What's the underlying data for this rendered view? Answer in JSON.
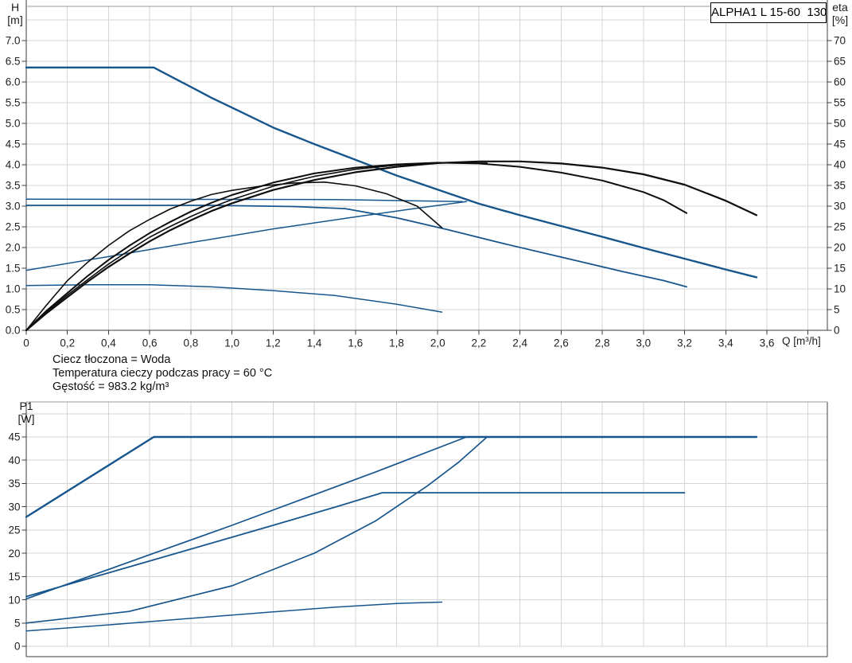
{
  "model_label": "ALPHA1 L 15-60  130",
  "axis_titles": {
    "head_line1": "H",
    "head_line2": "[m]",
    "eta_line1": "eta",
    "eta_line2": "[%]",
    "flow": "Q [m³/h]",
    "power_line1": "P1",
    "power_line2": "[W]"
  },
  "notes": [
    "Ciecz tłoczona = Woda",
    "Temperatura cieczy podczas pracy = 60 °C",
    "Gęstość = 983.2 kg/m³"
  ],
  "colors": {
    "curve_blue": "#17568c",
    "curve_black": "#0e0e0e",
    "grid": "#d6d6d6",
    "axis": "#3c3c3c",
    "tick_text": "#1f1f1f"
  },
  "chart_data": [
    {
      "type": "line",
      "title": "ALPHA1 L 15-60  130",
      "xlabel": "Q [m³/h]",
      "ylabel": "H [m]",
      "y2label": "eta [%]",
      "xlim": [
        0,
        3.89
      ],
      "ylim": [
        0,
        7.83
      ],
      "y2lim": [
        0,
        78.3
      ],
      "grid": true,
      "legend": false,
      "x_ticks": [
        0,
        0.2,
        0.4,
        0.6,
        0.8,
        1.0,
        1.2,
        1.4,
        1.6,
        1.8,
        2.0,
        2.2,
        2.4,
        2.6,
        2.8,
        3.0,
        3.2,
        3.4,
        3.6,
        3.8
      ],
      "x_tick_labels": [
        "0",
        "0,2",
        "0,4",
        "0,6",
        "0,8",
        "1,0",
        "1,2",
        "1,4",
        "1,6",
        "1,8",
        "2,0",
        "2,2",
        "2,4",
        "2,6",
        "2,8",
        "3,0",
        "3,2",
        "3,4",
        "3,6",
        ""
      ],
      "y_ticks": [
        0,
        0.5,
        1.0,
        1.5,
        2.0,
        2.5,
        3.0,
        3.5,
        4.0,
        4.5,
        5.0,
        5.5,
        6.0,
        6.5,
        7.0
      ],
      "y_tick_labels": [
        "0.0",
        "0.5",
        "1.0",
        "1.5",
        "2.0",
        "2.5",
        "3.0",
        "3.5",
        "4.0",
        "4.5",
        "5.0",
        "5.5",
        "6.0",
        "6.5",
        "7.0"
      ],
      "grid_extra_y": [
        7.5
      ],
      "y2_ticks": [
        0,
        5,
        10,
        15,
        20,
        25,
        30,
        35,
        40,
        45,
        50,
        55,
        60,
        65,
        70
      ],
      "y2_tick_labels": [
        "0",
        "5",
        "10",
        "15",
        "20",
        "25",
        "30",
        "35",
        "40",
        "45",
        "50",
        "55",
        "60",
        "65",
        "70"
      ],
      "series": [
        {
          "name": "head-speed-3-max",
          "axis": "y",
          "color": "#17568c",
          "width": 2.4,
          "points": [
            [
              0,
              6.35
            ],
            [
              0.62,
              6.35
            ],
            [
              0.7,
              6.14
            ],
            [
              0.8,
              5.88
            ],
            [
              0.9,
              5.62
            ],
            [
              1.0,
              5.38
            ],
            [
              1.1,
              5.14
            ],
            [
              1.2,
              4.9
            ],
            [
              1.3,
              4.7
            ],
            [
              1.4,
              4.5
            ],
            [
              1.6,
              4.12
            ],
            [
              1.8,
              3.74
            ],
            [
              2.0,
              3.4
            ],
            [
              2.2,
              3.06
            ],
            [
              2.4,
              2.78
            ],
            [
              2.6,
              2.52
            ],
            [
              2.8,
              2.26
            ],
            [
              3.0,
              1.99
            ],
            [
              3.2,
              1.73
            ],
            [
              3.4,
              1.47
            ],
            [
              3.55,
              1.28
            ]
          ]
        },
        {
          "name": "head-speed-2",
          "axis": "y",
          "color": "#17568c",
          "width": 1.8,
          "points": [
            [
              0,
              3.02
            ],
            [
              0.9,
              3.02
            ],
            [
              1.3,
              2.99
            ],
            [
              1.55,
              2.94
            ],
            [
              1.8,
              2.72
            ],
            [
              2.05,
              2.43
            ],
            [
              2.3,
              2.12
            ],
            [
              2.6,
              1.77
            ],
            [
              2.9,
              1.42
            ],
            [
              3.1,
              1.2
            ],
            [
              3.21,
              1.05
            ]
          ]
        },
        {
          "name": "head-const-pressure",
          "axis": "y",
          "color": "#17568c",
          "width": 1.5,
          "points": [
            [
              0,
              3.17
            ],
            [
              1.5,
              3.16
            ],
            [
              2.12,
              3.11
            ]
          ]
        },
        {
          "name": "head-prop-pressure",
          "axis": "y",
          "color": "#17568c",
          "width": 1.5,
          "points": [
            [
              0,
              1.45
            ],
            [
              0.4,
              1.78
            ],
            [
              0.8,
              2.12
            ],
            [
              1.2,
              2.45
            ],
            [
              1.6,
              2.74
            ],
            [
              1.9,
              2.95
            ],
            [
              2.14,
              3.11
            ]
          ]
        },
        {
          "name": "head-speed-1-min",
          "axis": "y",
          "color": "#17568c",
          "width": 1.5,
          "points": [
            [
              0,
              1.08
            ],
            [
              0.3,
              1.1
            ],
            [
              0.6,
              1.1
            ],
            [
              0.9,
              1.05
            ],
            [
              1.2,
              0.96
            ],
            [
              1.5,
              0.84
            ],
            [
              1.8,
              0.63
            ],
            [
              2.02,
              0.44
            ]
          ]
        },
        {
          "name": "eta-speed-1",
          "axis": "y2",
          "color": "#0e0e0e",
          "width": 1.6,
          "points": [
            [
              0,
              0
            ],
            [
              0.1,
              6.2
            ],
            [
              0.2,
              12
            ],
            [
              0.3,
              16.5
            ],
            [
              0.4,
              20.5
            ],
            [
              0.5,
              24
            ],
            [
              0.6,
              26.8
            ],
            [
              0.7,
              29.3
            ],
            [
              0.8,
              31.2
            ],
            [
              0.9,
              32.8
            ],
            [
              1.0,
              33.8
            ],
            [
              1.15,
              34.9
            ],
            [
              1.3,
              35.6
            ],
            [
              1.45,
              35.8
            ],
            [
              1.6,
              34.9
            ],
            [
              1.75,
              33
            ],
            [
              1.9,
              30
            ],
            [
              2.02,
              24.8
            ]
          ]
        },
        {
          "name": "eta-prop-pressure",
          "axis": "y2",
          "color": "#0e0e0e",
          "width": 1.6,
          "points": [
            [
              0,
              0
            ],
            [
              0.1,
              4.5
            ],
            [
              0.2,
              8.5
            ],
            [
              0.3,
              12.3
            ],
            [
              0.4,
              16
            ],
            [
              0.5,
              19.3
            ],
            [
              0.6,
              22.5
            ],
            [
              0.7,
              25.1
            ],
            [
              0.8,
              27.5
            ],
            [
              0.9,
              29.7
            ],
            [
              1.0,
              31.6
            ],
            [
              1.2,
              34.8
            ],
            [
              1.4,
              37.2
            ],
            [
              1.6,
              38.9
            ],
            [
              1.8,
              39.9
            ],
            [
              2.0,
              40.5
            ],
            [
              2.24,
              40.4
            ]
          ]
        },
        {
          "name": "eta-speed-2",
          "axis": "y2",
          "color": "#0e0e0e",
          "width": 2,
          "points": [
            [
              0,
              0
            ],
            [
              0.1,
              4.8
            ],
            [
              0.2,
              9
            ],
            [
              0.3,
              13.2
            ],
            [
              0.4,
              17
            ],
            [
              0.5,
              20.4
            ],
            [
              0.6,
              23.5
            ],
            [
              0.7,
              26.2
            ],
            [
              0.8,
              28.7
            ],
            [
              0.9,
              30.8
            ],
            [
              1.0,
              32.7
            ],
            [
              1.2,
              35.7
            ],
            [
              1.4,
              37.9
            ],
            [
              1.6,
              39.3
            ],
            [
              1.8,
              40.1
            ],
            [
              2.0,
              40.5
            ],
            [
              2.2,
              40.3
            ],
            [
              2.4,
              39.5
            ],
            [
              2.6,
              38.1
            ],
            [
              2.8,
              36.2
            ],
            [
              3.0,
              33.4
            ],
            [
              3.1,
              31.4
            ],
            [
              3.21,
              28.3
            ]
          ]
        },
        {
          "name": "eta-speed-3",
          "axis": "y2",
          "color": "#0e0e0e",
          "width": 2.2,
          "points": [
            [
              0,
              0
            ],
            [
              0.1,
              4.2
            ],
            [
              0.2,
              8
            ],
            [
              0.3,
              11.8
            ],
            [
              0.4,
              15.3
            ],
            [
              0.5,
              18.5
            ],
            [
              0.6,
              21.5
            ],
            [
              0.7,
              24.2
            ],
            [
              0.8,
              26.6
            ],
            [
              0.9,
              28.8
            ],
            [
              1.0,
              30.7
            ],
            [
              1.2,
              33.9
            ],
            [
              1.4,
              36.3
            ],
            [
              1.6,
              38.2
            ],
            [
              1.8,
              39.5
            ],
            [
              2.0,
              40.4
            ],
            [
              2.2,
              40.8
            ],
            [
              2.4,
              40.8
            ],
            [
              2.6,
              40.3
            ],
            [
              2.8,
              39.3
            ],
            [
              3.0,
              37.7
            ],
            [
              3.2,
              35.2
            ],
            [
              3.4,
              31.3
            ],
            [
              3.55,
              27.8
            ]
          ]
        }
      ]
    },
    {
      "type": "line",
      "title": "",
      "xlabel": "",
      "ylabel": "P1 [W]",
      "xlim": [
        0,
        3.89
      ],
      "ylim": [
        0,
        52.5
      ],
      "grid": true,
      "legend": false,
      "x_ticks": [
        0,
        0.2,
        0.4,
        0.6,
        0.8,
        1.0,
        1.2,
        1.4,
        1.6,
        1.8,
        2.0,
        2.2,
        2.4,
        2.6,
        2.8,
        3.0,
        3.2,
        3.4,
        3.6,
        3.8
      ],
      "x_tick_labels": [],
      "y_ticks": [
        0,
        5,
        10,
        15,
        20,
        25,
        30,
        35,
        40,
        45,
        50
      ],
      "y_tick_labels": [
        "0",
        "5",
        "10",
        "15",
        "20",
        "25",
        "30",
        "35",
        "40",
        "45",
        ""
      ],
      "grid_extra_y": [],
      "series": [
        {
          "name": "power-speed-3-max",
          "axis": "y",
          "color": "#17568c",
          "width": 2.4,
          "points": [
            [
              0,
              27.8
            ],
            [
              0.62,
              45
            ],
            [
              3.55,
              45
            ]
          ]
        },
        {
          "name": "power-speed-2",
          "axis": "y",
          "color": "#17568c",
          "width": 1.8,
          "points": [
            [
              0,
              10.7
            ],
            [
              0.4,
              15.8
            ],
            [
              0.8,
              20.9
            ],
            [
              1.2,
              26
            ],
            [
              1.5,
              29.9
            ],
            [
              1.73,
              33
            ],
            [
              3.2,
              33
            ]
          ]
        },
        {
          "name": "power-prop-pressure",
          "axis": "y",
          "color": "#17568c",
          "width": 1.7,
          "points": [
            [
              0,
              10.2
            ],
            [
              0.5,
              18.1
            ],
            [
              1.0,
              26
            ],
            [
              1.7,
              37.5
            ],
            [
              2.14,
              45
            ]
          ]
        },
        {
          "name": "power-const-pressure",
          "axis": "y",
          "color": "#17568c",
          "width": 1.7,
          "points": [
            [
              0,
              5
            ],
            [
              0.5,
              7.5
            ],
            [
              1.0,
              13
            ],
            [
              1.4,
              20
            ],
            [
              1.7,
              27
            ],
            [
              1.95,
              34.5
            ],
            [
              2.1,
              39.5
            ],
            [
              2.24,
              45
            ]
          ]
        },
        {
          "name": "power-speed-1-min",
          "axis": "y",
          "color": "#17568c",
          "width": 1.5,
          "points": [
            [
              0,
              3.3
            ],
            [
              0.4,
              4.6
            ],
            [
              0.8,
              6
            ],
            [
              1.2,
              7.4
            ],
            [
              1.5,
              8.4
            ],
            [
              1.8,
              9.2
            ],
            [
              2.02,
              9.5
            ]
          ]
        }
      ]
    }
  ]
}
